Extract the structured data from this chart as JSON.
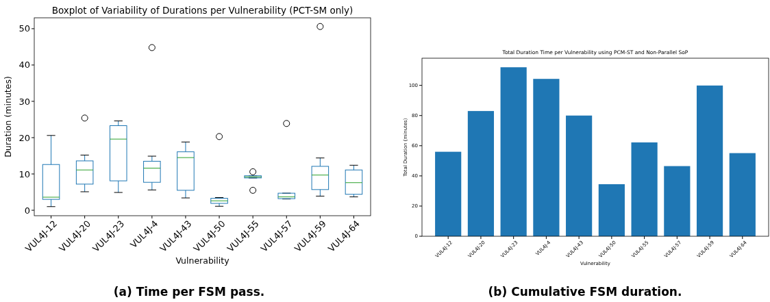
{
  "chart_data": [
    {
      "type": "box",
      "title": "Boxplot of Variability of Durations per Vulnerability (PCT-SM only)",
      "xlabel": "Vulnerability",
      "ylabel": "Duration (minutes)",
      "annotations": [
        "(a) Time per FSM pass."
      ],
      "categories": [
        "VUL4J-12",
        "VUL4J-20",
        "VUL4J-23",
        "VUL4J-4",
        "VUL4J-43",
        "VUL4J-50",
        "VUL4J-55",
        "VUL4J-57",
        "VUL4J-59",
        "VUL4J-64"
      ],
      "series": [
        {
          "color": "#1f77b4",
          "boxes": [
            {
              "low": 1.0,
              "q1": 3.0,
              "median": 3.6,
              "q3": 12.6,
              "high": 20.6
            },
            {
              "low": 5.1,
              "q1": 7.2,
              "median": 11.1,
              "q3": 13.6,
              "high": 15.2,
              "outliers": [
                25.4
              ]
            },
            {
              "low": 4.9,
              "q1": 8.1,
              "median": 19.6,
              "q3": 23.3,
              "high": 24.6
            },
            {
              "low": 5.6,
              "q1": 7.7,
              "median": 11.6,
              "q3": 13.5,
              "high": 14.9,
              "outliers": [
                44.8
              ]
            },
            {
              "low": 3.4,
              "q1": 5.5,
              "median": 14.5,
              "q3": 16.1,
              "high": 18.8
            },
            {
              "low": 1.1,
              "q1": 1.9,
              "median": 2.6,
              "q3": 3.3,
              "high": 3.5,
              "outliers": [
                20.3
              ]
            },
            {
              "low": 8.9,
              "q1": 8.9,
              "median": 9.2,
              "q3": 9.5,
              "high": 9.5,
              "outliers": [
                10.6,
                5.5
              ]
            },
            {
              "low": 3.1,
              "q1": 3.2,
              "median": 3.7,
              "q3": 4.7,
              "high": 4.7,
              "outliers": [
                23.9
              ]
            },
            {
              "low": 3.9,
              "q1": 5.7,
              "median": 9.7,
              "q3": 12.1,
              "high": 14.4,
              "outliers": [
                50.6
              ]
            },
            {
              "low": 3.7,
              "q1": 4.4,
              "median": 7.6,
              "q3": 11.1,
              "high": 12.4
            }
          ]
        }
      ],
      "ylim": [
        -1.5,
        53
      ],
      "yticks": [
        0,
        10,
        20,
        30,
        40,
        50
      ],
      "grid": false
    },
    {
      "type": "bar",
      "title": "Total Duration Time per Vulnerability using PCM-ST and Non-Parallel SoP",
      "xlabel": "Vulnerability",
      "ylabel": "Total Duration (minutes)",
      "annotations": [
        "(b) Cumulative FSM duration."
      ],
      "categories": [
        "VUL4J-12",
        "VUL4J-20",
        "VUL4J-23",
        "VUL4J-4",
        "VUL4J-43",
        "VUL4J-50",
        "VUL4J-55",
        "VUL4J-57",
        "VUL4J-59",
        "VUL4J-64"
      ],
      "series": [
        {
          "color": "#1f77b4",
          "values": [
            56,
            83,
            112,
            104.3,
            80,
            34.5,
            62.2,
            46.5,
            99.9,
            55.1
          ]
        }
      ],
      "ylim": [
        0,
        118
      ],
      "yticks": [
        0,
        20,
        40,
        60,
        80,
        100
      ],
      "grid": false
    }
  ]
}
